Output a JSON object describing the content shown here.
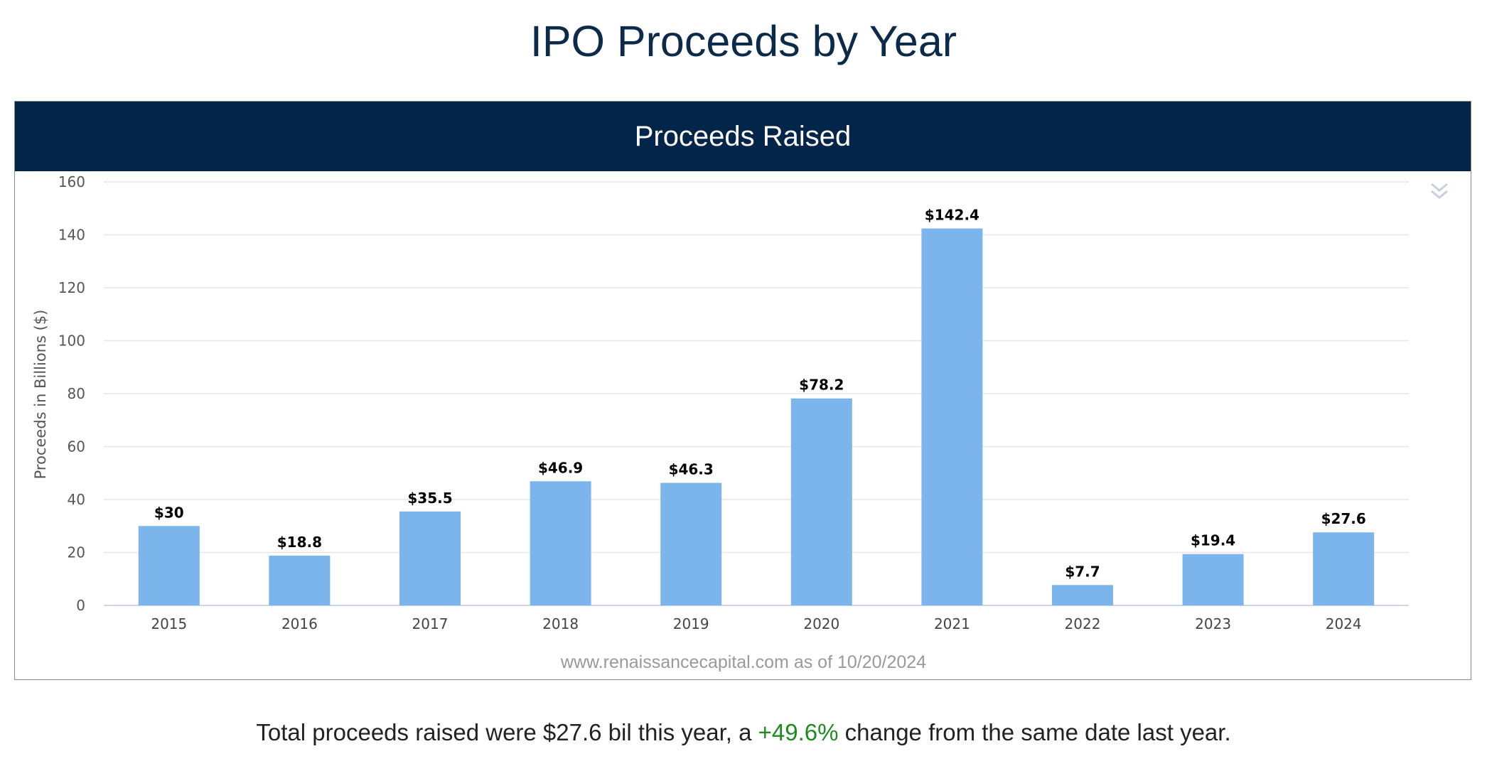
{
  "page": {
    "title": "IPO Proceeds by Year"
  },
  "chart_header": "Proceeds Raised",
  "chart_data": {
    "type": "bar",
    "title": "Proceeds Raised",
    "ylabel": "Proceeds in Billions ($)",
    "xlabel": "",
    "categories": [
      "2015",
      "2016",
      "2017",
      "2018",
      "2019",
      "2020",
      "2021",
      "2022",
      "2023",
      "2024"
    ],
    "values": [
      30,
      18.8,
      35.5,
      46.9,
      46.3,
      78.2,
      142.4,
      7.7,
      19.4,
      27.6
    ],
    "data_labels": [
      "$30",
      "$18.8",
      "$35.5",
      "$46.9",
      "$46.3",
      "$78.2",
      "$142.4",
      "$7.7",
      "$19.4",
      "$27.6"
    ],
    "ylim": [
      0,
      160
    ],
    "yticks": [
      0,
      20,
      40,
      60,
      80,
      100,
      120,
      140,
      160
    ],
    "grid": true,
    "bar_color": "#7cb5ec",
    "credit": "www.renaissancecapital.com as of 10/20/2024"
  },
  "summary": {
    "prefix": "Total proceeds raised were $27.6 bil this year, a ",
    "change": "+49.6%",
    "suffix": " change from the same date last year.",
    "change_color": "#1f8a1f"
  },
  "icons": {
    "export": "chevron-double-down-icon"
  }
}
